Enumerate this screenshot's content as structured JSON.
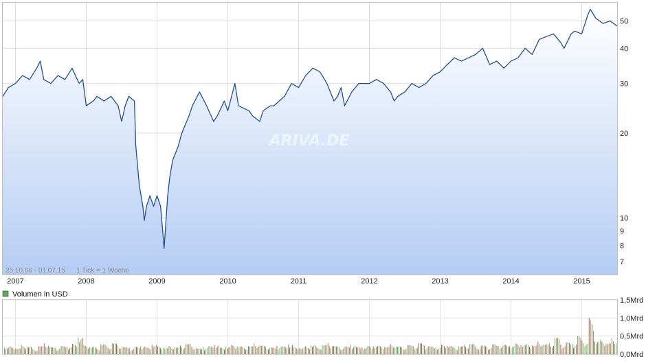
{
  "chart_data": [
    {
      "type": "line",
      "title": "",
      "xlabel": "",
      "ylabel": "",
      "yscale": "log",
      "ylim": [
        6.3,
        58
      ],
      "y_ticks": [
        7,
        8,
        9,
        10,
        20,
        30,
        40,
        50
      ],
      "x_ticks": [
        "2007",
        "2008",
        "2009",
        "2010",
        "2011",
        "2012",
        "2013",
        "2014",
        "2015"
      ],
      "date_range_label": "25.10.06 - 01.07.15",
      "tick_label": "1 Tick = 1 Woche",
      "watermark": "ARIVA.DE",
      "grid": true,
      "line_color": "#1f4e9c",
      "fill_top_color": "#ffffff",
      "fill_bottom_color": "#b4cdf3",
      "series": [
        {
          "x": [
            2006.82,
            2006.9,
            2007.0,
            2007.1,
            2007.2,
            2007.3,
            2007.35,
            2007.4,
            2007.5,
            2007.6,
            2007.7,
            2007.8,
            2007.9,
            2007.95,
            2008.0,
            2008.1,
            2008.15,
            2008.25,
            2008.35,
            2008.45,
            2008.5,
            2008.55,
            2008.6,
            2008.68,
            2008.7,
            2008.75,
            2008.8,
            2008.82,
            2008.85,
            2008.9,
            2008.95,
            2009.0,
            2009.05,
            2009.1,
            2009.15,
            2009.18,
            2009.22,
            2009.3,
            2009.35,
            2009.45,
            2009.5,
            2009.6,
            2009.7,
            2009.8,
            2009.85,
            2009.95,
            2010.0,
            2010.1,
            2010.15,
            2010.3,
            2010.35,
            2010.45,
            2010.5,
            2010.6,
            2010.65,
            2010.8,
            2010.9,
            2011.0,
            2011.1,
            2011.2,
            2011.3,
            2011.4,
            2011.5,
            2011.55,
            2011.6,
            2011.65,
            2011.75,
            2011.85,
            2011.95,
            2012.0,
            2012.1,
            2012.2,
            2012.3,
            2012.35,
            2012.4,
            2012.5,
            2012.6,
            2012.7,
            2012.8,
            2012.9,
            2013.0,
            2013.1,
            2013.2,
            2013.3,
            2013.4,
            2013.5,
            2013.6,
            2013.7,
            2013.8,
            2013.9,
            2014.0,
            2014.1,
            2014.2,
            2014.3,
            2014.4,
            2014.5,
            2014.6,
            2014.7,
            2014.75,
            2014.85,
            2014.9,
            2015.0,
            2015.08,
            2015.12,
            2015.2,
            2015.3,
            2015.4,
            2015.5
          ],
          "values": [
            27,
            29,
            30,
            32,
            31,
            34,
            36,
            31,
            30,
            32,
            31,
            34,
            30,
            31,
            25,
            26,
            27,
            26,
            27,
            25,
            22,
            25,
            27,
            26,
            18,
            13,
            11,
            9.8,
            11,
            12,
            11,
            12,
            11,
            7.8,
            12,
            14,
            16,
            18,
            20,
            23,
            25,
            28,
            25,
            22,
            23,
            26,
            24,
            30,
            25,
            24,
            23,
            22,
            24,
            25,
            25,
            27,
            30,
            29,
            32,
            34,
            33,
            30,
            26,
            27,
            29,
            25,
            28,
            30,
            30,
            30,
            31,
            30,
            28,
            26,
            27,
            28,
            30,
            29,
            30,
            32,
            33,
            35,
            37,
            36,
            37,
            38,
            40,
            35,
            36,
            34,
            36,
            37,
            40,
            38,
            43,
            44,
            45,
            42,
            40,
            45,
            46,
            45,
            52,
            55,
            51,
            49,
            50,
            48
          ]
        }
      ]
    },
    {
      "type": "bar",
      "title": "",
      "xlabel": "",
      "ylabel": "",
      "legend": "Volumen in USD",
      "legend_color": "#55b055",
      "y_ticks": [
        "1,5Mrd",
        "1,0Mrd",
        "0,5Mrd",
        "0,0Mrd"
      ],
      "ylim": [
        0,
        1.5
      ],
      "bar_colors": {
        "up": "#55b055",
        "down": "#c94040"
      },
      "series": [
        {
          "name": "Volumen in USD",
          "x_start": 2006.82,
          "x_end": 2015.5,
          "values_billion": [
            0.18,
            0.21,
            0.16,
            0.25,
            0.2,
            0.14,
            0.22,
            0.3,
            0.19,
            0.17,
            0.23,
            0.2,
            0.28,
            0.45,
            0.25,
            0.2,
            0.18,
            0.27,
            0.22,
            0.3,
            0.24,
            0.19,
            0.16,
            0.2,
            0.22,
            0.18,
            0.25,
            0.21,
            0.17,
            0.23,
            0.19,
            0.24,
            0.28,
            0.2,
            0.15,
            0.19,
            0.22,
            0.25,
            0.18,
            0.2,
            0.26,
            0.21,
            0.19,
            0.22,
            0.3,
            0.24,
            0.2,
            0.18,
            0.23,
            0.21,
            0.26,
            0.19,
            0.17,
            0.22,
            0.24,
            0.2,
            0.25,
            0.3,
            0.22,
            0.19,
            0.21,
            0.26,
            0.2,
            0.18,
            0.23,
            0.22,
            0.24,
            0.2,
            0.28,
            0.21,
            0.19,
            0.25,
            0.22,
            0.3,
            0.24,
            0.21,
            0.18,
            0.26,
            0.23,
            0.2,
            0.22,
            0.25,
            0.28,
            0.21,
            0.24,
            0.2,
            0.27,
            0.23,
            0.26,
            0.22,
            0.3,
            0.25,
            0.28,
            0.24,
            0.35,
            0.27,
            0.3,
            0.45,
            0.26,
            0.32,
            0.28,
            0.5,
            0.3,
            1.0,
            0.35,
            0.4,
            0.3,
            0.45
          ]
        }
      ]
    }
  ]
}
